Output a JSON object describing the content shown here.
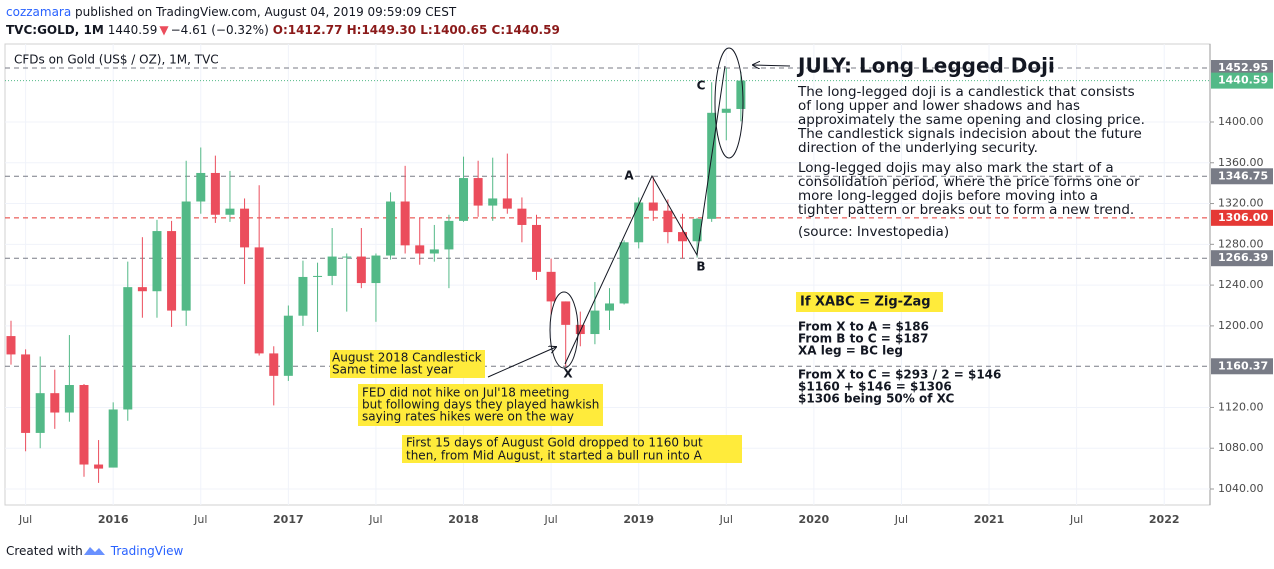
{
  "header": {
    "author": "cozzamara",
    "published": " published on TradingView.com, August 04, 2019 09:59:09 CEST",
    "symbol": "TVC:GOLD, 1M",
    "price": "1440.59",
    "arrow": "▼",
    "change": "−4.61 (−0.32%)",
    "ohlc": "O:1412.77 H:1449.30 L:1400.65 C:1440.59"
  },
  "footer": {
    "created": "Created with",
    "brand": "TradingView"
  },
  "chart_data": {
    "type": "candlestick",
    "title": "CFDs on Gold (US$ / OZ), 1M, TVC",
    "x": [
      "2015-06",
      "2015-07",
      "2015-08",
      "2015-09",
      "2015-10",
      "2015-11",
      "2015-12",
      "2016-01",
      "2016-02",
      "2016-03",
      "2016-04",
      "2016-05",
      "2016-06",
      "2016-07",
      "2016-08",
      "2016-09",
      "2016-10",
      "2016-11",
      "2016-12",
      "2017-01",
      "2017-02",
      "2017-03",
      "2017-04",
      "2017-05",
      "2017-06",
      "2017-07",
      "2017-08",
      "2017-09",
      "2017-10",
      "2017-11",
      "2017-12",
      "2018-01",
      "2018-02",
      "2018-03",
      "2018-04",
      "2018-05",
      "2018-06",
      "2018-07",
      "2018-08",
      "2018-09",
      "2018-10",
      "2018-11",
      "2018-12",
      "2019-01",
      "2019-02",
      "2019-03",
      "2019-04",
      "2019-05",
      "2019-06",
      "2019-07",
      "2019-08"
    ],
    "open": [
      1190,
      1172,
      1095,
      1134,
      1115,
      1142,
      1064,
      1061,
      1118,
      1238,
      1234,
      1293,
      1215,
      1322,
      1350,
      1309,
      1315,
      1277,
      1173,
      1151,
      1210,
      1248,
      1249,
      1268,
      1268,
      1242,
      1269,
      1322,
      1279,
      1271,
      1275,
      1303,
      1345,
      1318,
      1325,
      1315,
      1299,
      1253,
      1224,
      1201,
      1192,
      1215,
      1222,
      1282,
      1321,
      1313,
      1292,
      1283,
      1305,
      1409,
      1412.77
    ],
    "high": [
      1205,
      1177,
      1170,
      1157,
      1191,
      1143,
      1088,
      1125,
      1263,
      1287,
      1304,
      1303,
      1362,
      1375,
      1367,
      1352,
      1325,
      1338,
      1180,
      1220,
      1264,
      1262,
      1296,
      1271,
      1296,
      1271,
      1331,
      1357,
      1306,
      1299,
      1309,
      1366,
      1362,
      1365,
      1369,
      1326,
      1309,
      1266,
      1224,
      1214,
      1243,
      1237,
      1284,
      1326,
      1346,
      1324,
      1310,
      1306,
      1439,
      1453,
      1449.3
    ],
    "low": [
      1162,
      1077,
      1080,
      1099,
      1106,
      1052,
      1046,
      1062,
      1107,
      1208,
      1208,
      1199,
      1200,
      1310,
      1301,
      1302,
      1241,
      1171,
      1122,
      1146,
      1200,
      1194,
      1240,
      1214,
      1237,
      1204,
      1265,
      1271,
      1260,
      1263,
      1237,
      1302,
      1307,
      1303,
      1310,
      1282,
      1245,
      1211,
      1160,
      1180,
      1182,
      1196,
      1221,
      1276,
      1303,
      1281,
      1266,
      1267,
      1302,
      1382,
      1400.65
    ],
    "close": [
      1172,
      1095,
      1134,
      1115,
      1142,
      1064,
      1060,
      1118,
      1238,
      1234,
      1293,
      1215,
      1322,
      1350,
      1309,
      1315,
      1277,
      1173,
      1151,
      1210,
      1248,
      1249,
      1268,
      1268,
      1242,
      1269,
      1322,
      1279,
      1271,
      1275,
      1303,
      1345,
      1318,
      1325,
      1315,
      1299,
      1253,
      1224,
      1201,
      1192,
      1215,
      1222,
      1282,
      1321,
      1313,
      1292,
      1283,
      1305,
      1409,
      1413,
      1440.59
    ],
    "up_color": "#53b987",
    "down_color": "#eb4d5c",
    "xlim": [
      "2015-06",
      "2022-04"
    ],
    "xticks": [
      {
        "value": "2015-07",
        "label": "Jul"
      },
      {
        "value": "2016-01",
        "label": "2016"
      },
      {
        "value": "2016-07",
        "label": "Jul"
      },
      {
        "value": "2017-01",
        "label": "2017"
      },
      {
        "value": "2017-07",
        "label": "Jul"
      },
      {
        "value": "2018-01",
        "label": "2018"
      },
      {
        "value": "2018-07",
        "label": "Jul"
      },
      {
        "value": "2019-01",
        "label": "2019"
      },
      {
        "value": "2019-07",
        "label": "Jul"
      },
      {
        "value": "2020-01",
        "label": "2020"
      },
      {
        "value": "2020-07",
        "label": "Jul"
      },
      {
        "value": "2021-01",
        "label": "2021"
      },
      {
        "value": "2021-07",
        "label": "Jul"
      },
      {
        "value": "2022-01",
        "label": "2022"
      }
    ],
    "ylim": [
      1024.3,
      1476.5
    ],
    "yticks": [
      {
        "value": 1040,
        "label": "1040.00"
      },
      {
        "value": 1080,
        "label": "1080.00"
      },
      {
        "value": 1120,
        "label": "1120.00"
      },
      {
        "value": 1200,
        "label": "1200.00"
      },
      {
        "value": 1240,
        "label": "1240.00"
      },
      {
        "value": 1280,
        "label": "1280.00"
      },
      {
        "value": 1320,
        "label": "1320.00"
      },
      {
        "value": 1360,
        "label": "1360.00"
      },
      {
        "value": 1400,
        "label": "1400.00"
      }
    ],
    "grid": true,
    "levels": [
      {
        "value": 1452.95,
        "color": "#787b86"
      },
      {
        "value": 1346.75,
        "color": "#787b86"
      },
      {
        "value": 1306,
        "label": "1306.00",
        "color": "#e53935"
      },
      {
        "value": 1266.39,
        "color": "#787b86"
      },
      {
        "value": 1160.37,
        "color": "#787b86"
      }
    ],
    "last_price": {
      "value": 1440.59,
      "color": "#53b987"
    },
    "points": {
      "X": "X",
      "A": "A",
      "B": "B",
      "C": "C"
    },
    "doji_title": "JULY: Long Legged Doji",
    "doji_text": [
      "The long-legged doji is a candlestick that consists",
      "of long upper and lower shadows and has",
      "approximately the same opening and closing price.",
      "The candlestick signals indecision about the future",
      "direction of the underlying security."
    ],
    "doji_text2": [
      "Long-legged dojis may also mark the start of a",
      "consolidation period, where the price forms one or",
      "more long-legged dojis before moving into a",
      "tighter pattern or breaks out to form a new trend."
    ],
    "source": "(source: Investopedia)",
    "zigzag_title": "If XABC = Zig-Zag",
    "zigzag_lines": [
      "From X to A = $186",
      "From B to C = $187",
      "XA leg = BC leg"
    ],
    "zigzag_lines2": [
      "From X to C = $293 / 2 = $146",
      "$1160 + $146 = $1306",
      "$1306 being 50% of XC"
    ],
    "note_aug": [
      "August 2018 Candlestick",
      "Same time last year"
    ],
    "note_fed": [
      "FED did not hike on Jul'18 meeting",
      "but following days they played hawkish",
      "saying rates hikes were on the way"
    ],
    "note_first": [
      "First 15 days of August Gold dropped to 1160 but",
      "then, from Mid August, it started a bull run into A"
    ]
  }
}
